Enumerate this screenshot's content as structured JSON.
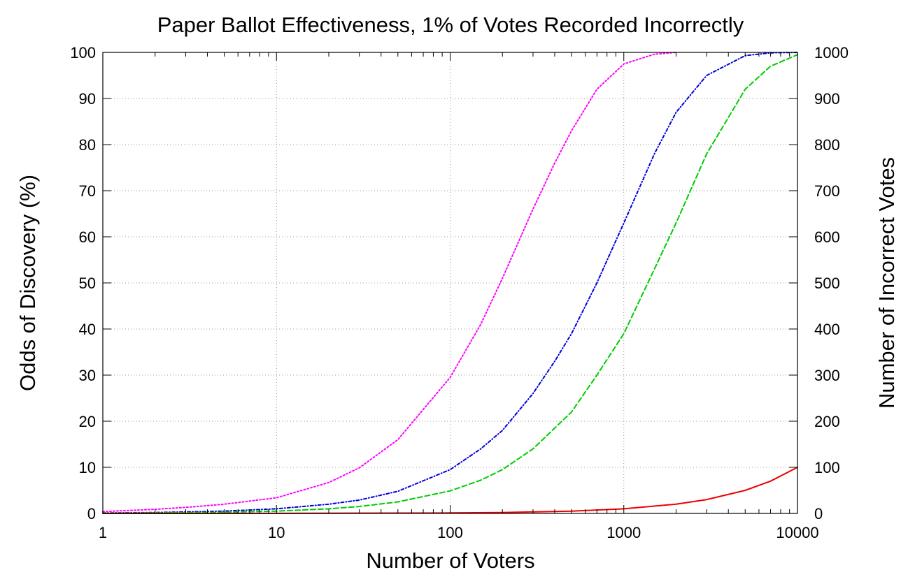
{
  "chart_data": {
    "type": "line",
    "title": "Paper Ballot Effectiveness, 1% of Votes Recorded Incorrectly",
    "xlabel": "Number of Voters",
    "ylabel": "Odds of Discovery (%)",
    "y2label": "Number of Incorrect Votes",
    "x_scale": "log",
    "xlim": [
      1,
      10000
    ],
    "ylim": [
      0,
      100
    ],
    "y2lim": [
      0,
      1000
    ],
    "grid": true,
    "x_ticks": [
      "1",
      "10",
      "100",
      "1000",
      "10000"
    ],
    "y_ticks": [
      "0",
      "10",
      "20",
      "30",
      "40",
      "50",
      "60",
      "70",
      "80",
      "90",
      "100"
    ],
    "y2_ticks": [
      "0",
      "100",
      "200",
      "300",
      "400",
      "500",
      "600",
      "700",
      "800",
      "900",
      "1000"
    ],
    "series": [
      {
        "color": "#ff00ff",
        "dash": "dotted",
        "axis": "y",
        "x": [
          1,
          2,
          3,
          5,
          10,
          20,
          30,
          50,
          100,
          150,
          200,
          300,
          400,
          500,
          700,
          1000,
          1500,
          2000
        ],
        "y": [
          0.4,
          0.9,
          1.3,
          2.0,
          3.4,
          6.7,
          9.9,
          16.0,
          29.5,
          41.0,
          51.0,
          66.0,
          76.0,
          83.0,
          92.0,
          97.5,
          99.6,
          100.0
        ]
      },
      {
        "color": "#0000dd",
        "dash": "dashdot",
        "axis": "y",
        "x": [
          1,
          2,
          5,
          10,
          20,
          30,
          50,
          100,
          150,
          200,
          300,
          400,
          500,
          700,
          1000,
          1500,
          2000,
          3000,
          5000,
          7000,
          10000
        ],
        "y": [
          0.1,
          0.2,
          0.5,
          1.0,
          2.0,
          2.9,
          4.8,
          9.5,
          14.0,
          18.0,
          26.0,
          33.0,
          39.0,
          50.0,
          63.0,
          78.0,
          87.0,
          95.0,
          99.3,
          99.9,
          100.0
        ]
      },
      {
        "color": "#00cc00",
        "dash": "dashed",
        "axis": "y",
        "x": [
          1,
          2,
          5,
          10,
          20,
          30,
          50,
          100,
          150,
          200,
          300,
          500,
          700,
          1000,
          1500,
          2000,
          3000,
          5000,
          7000,
          10000
        ],
        "y": [
          0.05,
          0.1,
          0.25,
          0.5,
          1.0,
          1.5,
          2.5,
          4.9,
          7.2,
          9.5,
          14.0,
          22.0,
          30.0,
          39.0,
          53.0,
          63.0,
          78.0,
          92.0,
          97.0,
          99.5
        ]
      },
      {
        "color": "#ee0000",
        "dash": "solid",
        "axis": "y2",
        "x": [
          1,
          10,
          100,
          200,
          500,
          1000,
          2000,
          3000,
          5000,
          7000,
          10000
        ],
        "y": [
          0.01,
          0.1,
          1,
          2,
          5,
          10,
          20,
          30,
          50,
          70,
          100
        ]
      }
    ]
  }
}
